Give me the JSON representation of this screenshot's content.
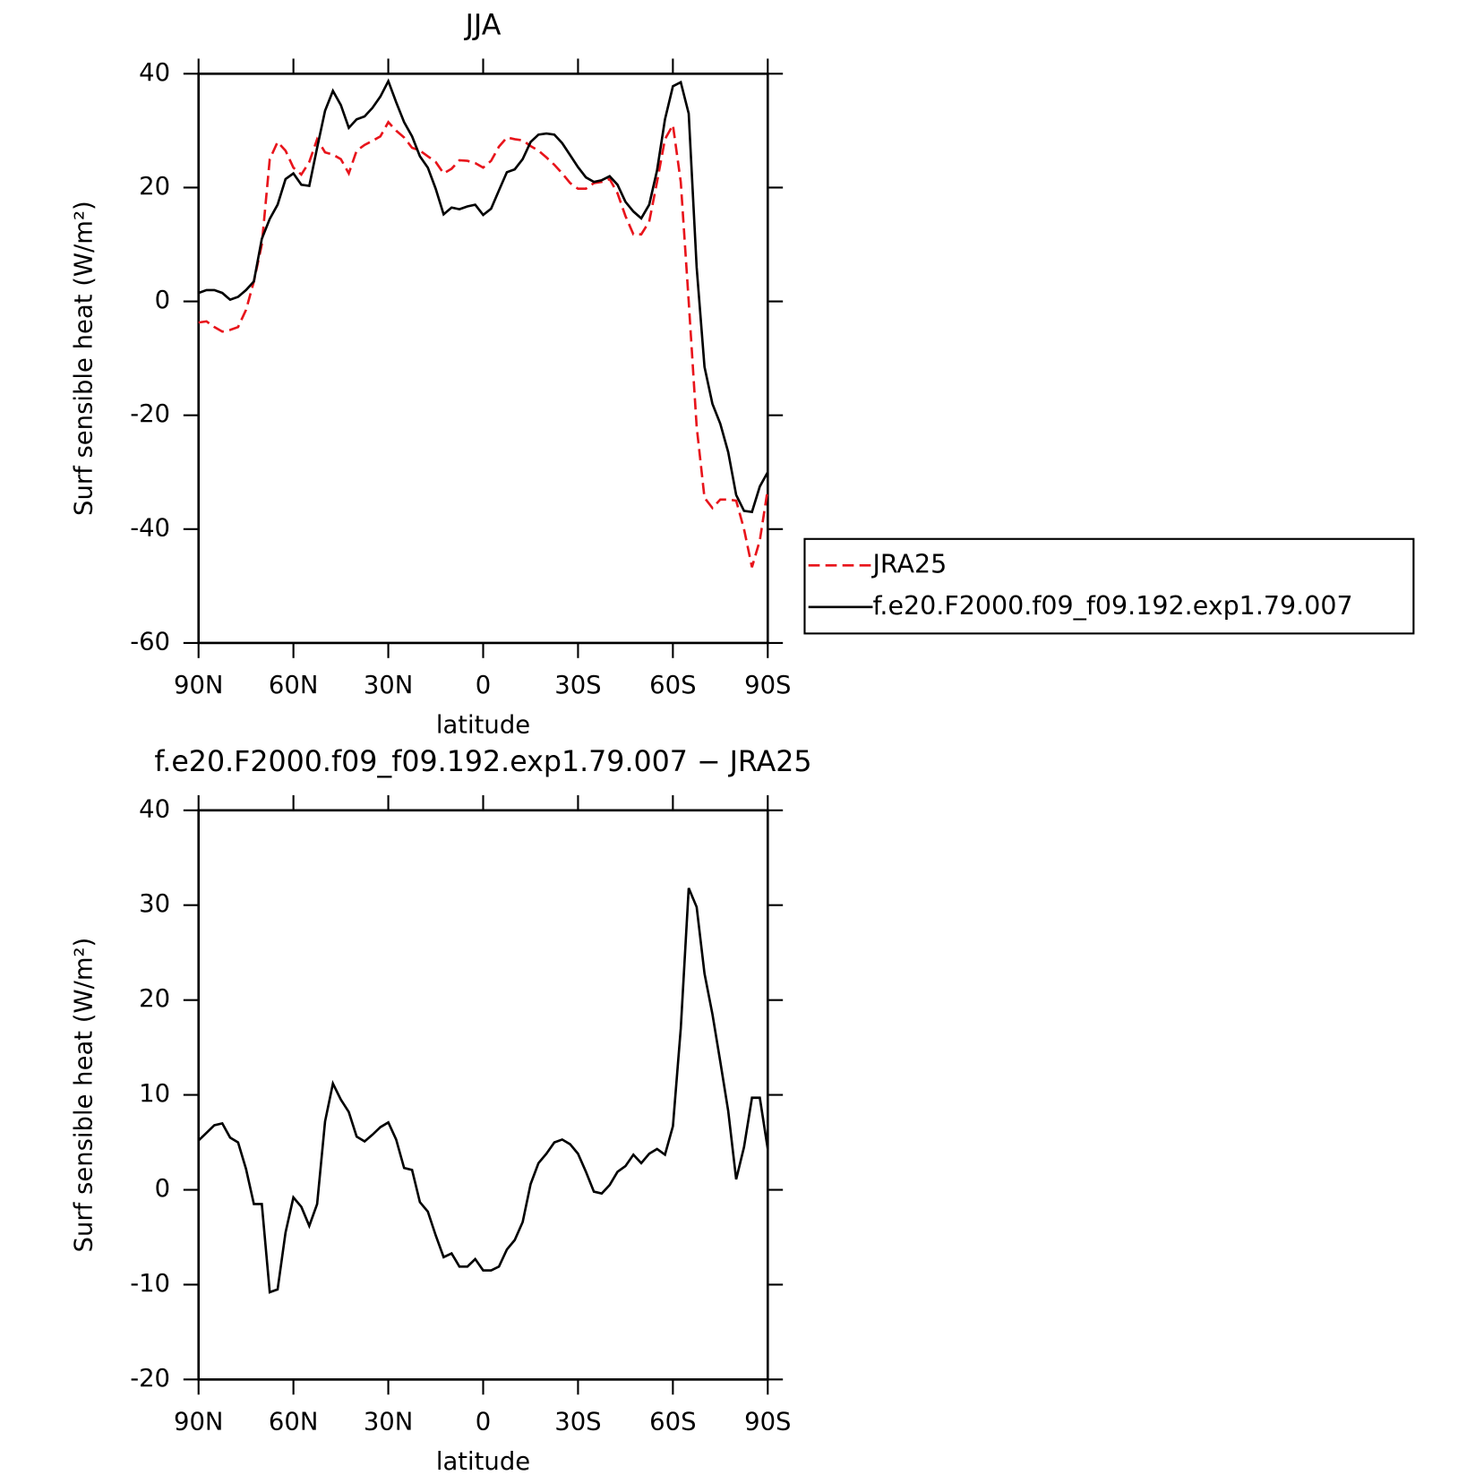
{
  "chart_data": [
    {
      "type": "line",
      "title": "JJA",
      "xlabel": "latitude",
      "ylabel": "Surf sensible heat (W/m²)",
      "x": [
        90,
        87.5,
        85,
        82.5,
        80,
        77.5,
        75,
        72.5,
        70,
        67.5,
        65,
        62.5,
        60,
        57.5,
        55,
        52.5,
        50,
        47.5,
        45,
        42.5,
        40,
        37.5,
        35,
        32.5,
        30,
        27.5,
        25,
        22.5,
        20,
        17.5,
        15,
        12.5,
        10,
        7.5,
        5,
        2.5,
        0,
        -2.5,
        -5,
        -7.5,
        -10,
        -12.5,
        -15,
        -17.5,
        -20,
        -22.5,
        -25,
        -27.5,
        -30,
        -32.5,
        -35,
        -37.5,
        -40,
        -42.5,
        -45,
        -47.5,
        -50,
        -52.5,
        -55,
        -57.5,
        -60,
        -62.5,
        -65,
        -67.5,
        -70,
        -72.5,
        -75,
        -77.5,
        -80,
        -82.5,
        -85,
        -87.5,
        -90
      ],
      "xlim": [
        90,
        -90
      ],
      "xticks": [
        {
          "value": 90,
          "label": "90N"
        },
        {
          "value": 60,
          "label": "60N"
        },
        {
          "value": 30,
          "label": "30N"
        },
        0,
        {
          "value": -30,
          "label": "30S"
        },
        {
          "value": -60,
          "label": "60S"
        },
        {
          "value": -90,
          "label": "90S"
        }
      ],
      "ylim": [
        -60,
        40
      ],
      "yticks": [
        -60,
        -40,
        -20,
        0,
        20,
        40
      ],
      "legend": "right",
      "series": [
        {
          "name": "JRA25",
          "color": "#e8141b",
          "dash": true,
          "values": [
            -3.7,
            -3.5,
            -4.5,
            -5.3,
            -5,
            -4.5,
            -1.5,
            3.5,
            10,
            25,
            28,
            26.5,
            23.5,
            22.3,
            24.5,
            28.5,
            26.2,
            25.8,
            25,
            22.5,
            26.5,
            27.5,
            28.2,
            29,
            31.5,
            30,
            28.8,
            27,
            26.5,
            25.5,
            24.5,
            22.5,
            23.3,
            24.8,
            24.7,
            24.3,
            23.5,
            24.7,
            27.2,
            28.8,
            28.5,
            28.3,
            27.3,
            26.5,
            25.3,
            24,
            22.5,
            20.8,
            19.8,
            19.8,
            20.8,
            21,
            21.5,
            19,
            15,
            11.8,
            11.8,
            14,
            21,
            28.5,
            31,
            21,
            0,
            -22,
            -34.5,
            -36.3,
            -34.8,
            -34.8,
            -35,
            -40,
            -46.7,
            -42,
            -33
          ]
        },
        {
          "name": "f.e20.F2000.f09_f09.192.exp1.79.007",
          "color": "#000000",
          "dash": false,
          "values": [
            1.5,
            2,
            2,
            1.5,
            0.3,
            0.8,
            2,
            3.5,
            11,
            14.5,
            17,
            21.5,
            22.5,
            20.5,
            20.3,
            27,
            33.5,
            37,
            34.5,
            30.5,
            32,
            32.5,
            34,
            36,
            38.7,
            35,
            31.5,
            29,
            25.5,
            23.5,
            19.8,
            15.3,
            16.5,
            16.2,
            16.7,
            17,
            15.2,
            16.3,
            19.5,
            22.7,
            23.2,
            25,
            28,
            29.3,
            29.5,
            29.3,
            27.8,
            25.7,
            23.6,
            21.8,
            21,
            21.3,
            22,
            20.5,
            17.5,
            15.8,
            14.6,
            17,
            23,
            32,
            37.8,
            38.5,
            33,
            6,
            -11.5,
            -18,
            -21.5,
            -26.5,
            -34,
            -36.8,
            -37,
            -32.5,
            -30
          ]
        }
      ]
    },
    {
      "type": "line",
      "title": "f.e20.F2000.f09_f09.192.exp1.79.007 − JRA25",
      "xlabel": "latitude",
      "ylabel": "Surf sensible heat (W/m²)",
      "x": [
        90,
        87.5,
        85,
        82.5,
        80,
        77.5,
        75,
        72.5,
        70,
        67.5,
        65,
        62.5,
        60,
        57.5,
        55,
        52.5,
        50,
        47.5,
        45,
        42.5,
        40,
        37.5,
        35,
        32.5,
        30,
        27.5,
        25,
        22.5,
        20,
        17.5,
        15,
        12.5,
        10,
        7.5,
        5,
        2.5,
        0,
        -2.5,
        -5,
        -7.5,
        -10,
        -12.5,
        -15,
        -17.5,
        -20,
        -22.5,
        -25,
        -27.5,
        -30,
        -32.5,
        -35,
        -37.5,
        -40,
        -42.5,
        -45,
        -47.5,
        -50,
        -52.5,
        -55,
        -57.5,
        -60,
        -62.5,
        -65,
        -67.5,
        -70,
        -72.5,
        -75,
        -77.5,
        -80,
        -82.5,
        -85,
        -87.5,
        -90
      ],
      "xlim": [
        90,
        -90
      ],
      "xticks": [
        {
          "value": 90,
          "label": "90N"
        },
        {
          "value": 60,
          "label": "60N"
        },
        {
          "value": 30,
          "label": "30N"
        },
        0,
        {
          "value": -30,
          "label": "30S"
        },
        {
          "value": -60,
          "label": "60S"
        },
        {
          "value": -90,
          "label": "90S"
        }
      ],
      "ylim": [
        -20,
        40
      ],
      "yticks": [
        -20,
        -10,
        0,
        10,
        20,
        30,
        40
      ],
      "series": [
        {
          "color": "#000000",
          "dash": false,
          "values": [
            5.2,
            6,
            6.8,
            7,
            5.5,
            5,
            2.2,
            -1.5,
            -1.5,
            -10.8,
            -10.5,
            -4.5,
            -0.8,
            -1.8,
            -3.8,
            -1.5,
            7.2,
            11.2,
            9.5,
            8.2,
            5.6,
            5.1,
            5.8,
            6.6,
            7.1,
            5.3,
            2.3,
            2.1,
            -1.3,
            -2.3,
            -4.8,
            -7.1,
            -6.7,
            -8.1,
            -8.1,
            -7.3,
            -8.5,
            -8.5,
            -8.1,
            -6.3,
            -5.3,
            -3.4,
            0.6,
            2.8,
            3.8,
            5,
            5.3,
            4.8,
            3.8,
            1.9,
            -0.2,
            -0.4,
            0.5,
            1.9,
            2.5,
            3.7,
            2.8,
            3.8,
            4.3,
            3.7,
            6.7,
            17,
            31.8,
            29.8,
            22.8,
            18.5,
            13.5,
            8.3,
            1.1,
            4.5,
            9.7,
            9.7,
            4.3
          ]
        }
      ]
    }
  ]
}
